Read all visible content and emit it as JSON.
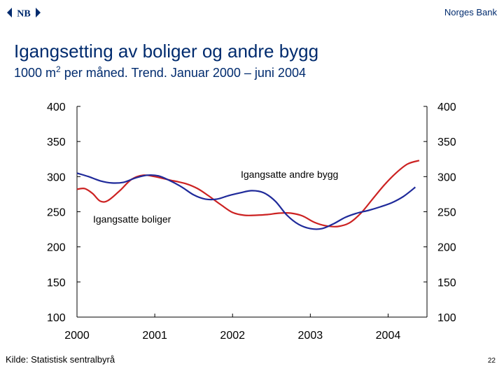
{
  "header": {
    "bank_name": "Norges Bank",
    "logo_text": "NB",
    "brand_color": "#002b6e"
  },
  "title_parts": {
    "main": "Igangsetting av boliger og andre bygg",
    "sub_prefix": "1000 m",
    "sub_sup": "2",
    "sub_suffix": " per måned. Trend. Januar 2000 – juni 2004"
  },
  "footer": {
    "source": "Kilde: Statistisk sentralbyrå",
    "page": "22"
  },
  "chart_data": {
    "type": "line",
    "title": "Igangsetting av boliger og andre bygg",
    "subtitle": "1000 m2 per måned. Trend. Januar 2000 – juni 2004",
    "xlabel": "",
    "ylabel": "",
    "xlim": [
      2000.0,
      2004.5
    ],
    "ylim": [
      100,
      400
    ],
    "yticks": [
      100,
      150,
      200,
      250,
      300,
      350,
      400
    ],
    "xticks": [
      "2000",
      "2001",
      "2002",
      "2003",
      "2004"
    ],
    "grid": false,
    "annotations": [
      "Igangsatte andre bygg",
      "Igangsatte boliger"
    ],
    "series": [
      {
        "name": "Igangsatte andre bygg",
        "color": "#cc2222",
        "x": [
          2000.0,
          2000.1,
          2000.2,
          2000.3,
          2000.4,
          2000.55,
          2000.7,
          2000.85,
          2001.0,
          2001.2,
          2001.4,
          2001.55,
          2001.7,
          2001.85,
          2002.0,
          2002.15,
          2002.3,
          2002.45,
          2002.6,
          2002.75,
          2002.9,
          2003.05,
          2003.2,
          2003.35,
          2003.5,
          2003.65,
          2003.8,
          2003.95,
          2004.1,
          2004.25,
          2004.4
        ],
        "y": [
          282,
          283,
          276,
          265,
          266,
          280,
          296,
          302,
          300,
          295,
          290,
          283,
          272,
          260,
          249,
          245,
          245,
          246,
          248,
          248,
          244,
          235,
          230,
          229,
          234,
          248,
          268,
          288,
          305,
          318,
          323
        ]
      },
      {
        "name": "Igangsatte boliger",
        "color": "#1f2a9a",
        "x": [
          2000.0,
          2000.15,
          2000.3,
          2000.45,
          2000.6,
          2000.75,
          2000.9,
          2001.05,
          2001.2,
          2001.35,
          2001.5,
          2001.65,
          2001.8,
          2001.95,
          2002.1,
          2002.25,
          2002.4,
          2002.55,
          2002.7,
          2002.85,
          2003.0,
          2003.15,
          2003.3,
          2003.45,
          2003.6,
          2003.75,
          2003.9,
          2004.05,
          2004.2,
          2004.35
        ],
        "y": [
          305,
          300,
          294,
          291,
          292,
          298,
          302,
          301,
          294,
          285,
          274,
          268,
          268,
          273,
          277,
          280,
          277,
          265,
          245,
          232,
          226,
          226,
          233,
          242,
          248,
          252,
          257,
          263,
          272,
          285
        ]
      }
    ]
  }
}
